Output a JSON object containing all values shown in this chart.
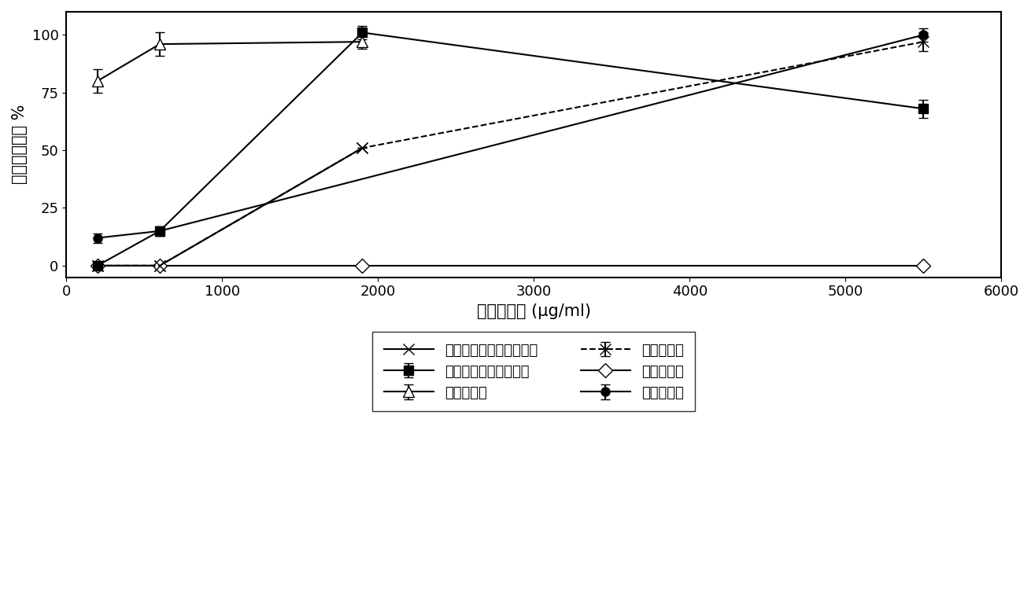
{
  "title": "",
  "xlabel": "聚合物浓度 (μg/ml)",
  "ylabel": "细胞生长抑制 %",
  "xlim": [
    0,
    6000
  ],
  "ylim": [
    -5,
    110
  ],
  "xticks": [
    0,
    1000,
    2000,
    3000,
    4000,
    5000,
    6000
  ],
  "yticks": [
    0,
    25,
    50,
    75,
    100
  ],
  "series": [
    {
      "label": "葡聚糖－乙醇胺（亚胺）",
      "x": [
        200,
        600,
        1900
      ],
      "y": [
        0,
        0,
        51
      ],
      "yerr": [
        0,
        0,
        0
      ],
      "color": "black",
      "marker": "x",
      "linestyle": "-",
      "linewidth": 1.5,
      "markersize": 10,
      "markerfacecolor": "none",
      "markeredgecolor": "black"
    },
    {
      "label": "氧化葡聚糖",
      "x": [
        200,
        600,
        1900
      ],
      "y": [
        80,
        96,
        97
      ],
      "yerr": [
        5,
        5,
        3
      ],
      "color": "black",
      "marker": "^",
      "linestyle": "-",
      "linewidth": 1.5,
      "markersize": 10,
      "markerfacecolor": "white",
      "markeredgecolor": "black"
    },
    {
      "label": "还原葡聚糖",
      "x": [
        200,
        600,
        1900,
        5500
      ],
      "y": [
        0,
        0,
        0,
        0
      ],
      "yerr": [
        0,
        0,
        0,
        0
      ],
      "color": "black",
      "marker": "D",
      "linestyle": "-",
      "linewidth": 1.5,
      "markersize": 9,
      "markerfacecolor": "white",
      "markeredgecolor": "black"
    },
    {
      "label": "葡聚糖－乙醇胺（胺）",
      "x": [
        200,
        600,
        1900,
        5500
      ],
      "y": [
        0,
        15,
        101,
        68
      ],
      "yerr": [
        0,
        2,
        3,
        4
      ],
      "color": "black",
      "marker": "s",
      "linestyle": "-",
      "linewidth": 1.5,
      "markersize": 8,
      "markerfacecolor": "black",
      "markeredgecolor": "black"
    },
    {
      "label": "天然葡聚糖",
      "x": [
        200,
        600,
        1900,
        5500
      ],
      "y": [
        0,
        0,
        51,
        97
      ],
      "yerr": [
        0,
        0,
        0,
        4
      ],
      "color": "black",
      "marker": "x",
      "linestyle": "--",
      "linewidth": 1.5,
      "markersize": 10,
      "markerfacecolor": "none",
      "markeredgecolor": "black"
    },
    {
      "label": "葡聚糖缩醛",
      "x": [
        200,
        600,
        5500
      ],
      "y": [
        12,
        15,
        100
      ],
      "yerr": [
        2,
        2,
        3
      ],
      "color": "black",
      "marker": "o",
      "linestyle": "-",
      "linewidth": 1.5,
      "markersize": 8,
      "markerfacecolor": "black",
      "markeredgecolor": "black"
    }
  ],
  "legend_order": [
    0,
    3,
    1,
    4,
    2,
    5
  ],
  "background_color": "white",
  "font_size": 13,
  "legend_box": true
}
